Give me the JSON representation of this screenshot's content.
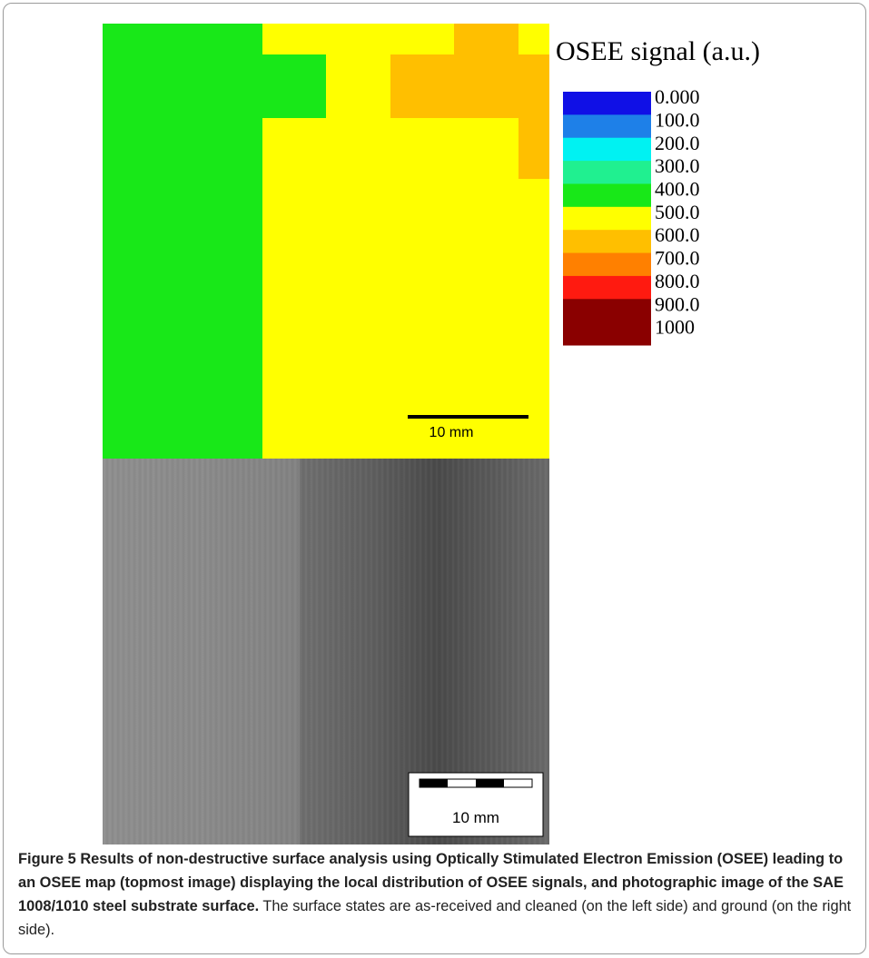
{
  "figure": {
    "map": {
      "legend": {
        "title": "OSEE signal (a.u.)",
        "items": [
          {
            "label": "0.000",
            "color": "#1010e6"
          },
          {
            "label": "100.0",
            "color": "#1e80e8"
          },
          {
            "label": "200.0",
            "color": "#00f2f2"
          },
          {
            "label": "300.0",
            "color": "#20f090"
          },
          {
            "label": "400.0",
            "color": "#18e818"
          },
          {
            "label": "500.0",
            "color": "#ffff00"
          },
          {
            "label": "600.0",
            "color": "#ffbf00"
          },
          {
            "label": "700.0",
            "color": "#ff8000"
          },
          {
            "label": "800.0",
            "color": "#ff1a10"
          },
          {
            "label": "900.0",
            "color": "#8a0000"
          },
          {
            "label": "1000",
            "color": "#8a0000"
          }
        ]
      },
      "scale_bar": "10 mm"
    },
    "photo": {
      "scale_bar": "10 mm"
    },
    "caption": {
      "label": "Figure 5",
      "title": "Results of non-destructive surface analysis using Optically Stimulated Electron Emission (OSEE) leading to an OSEE map (topmost image) displaying the local distribution of OSEE signals, and photographic image of the SAE 1008/1010 steel substrate surface.",
      "text": "The surface states are as-received and cleaned (on the left side) and ground (on the right side)."
    }
  }
}
